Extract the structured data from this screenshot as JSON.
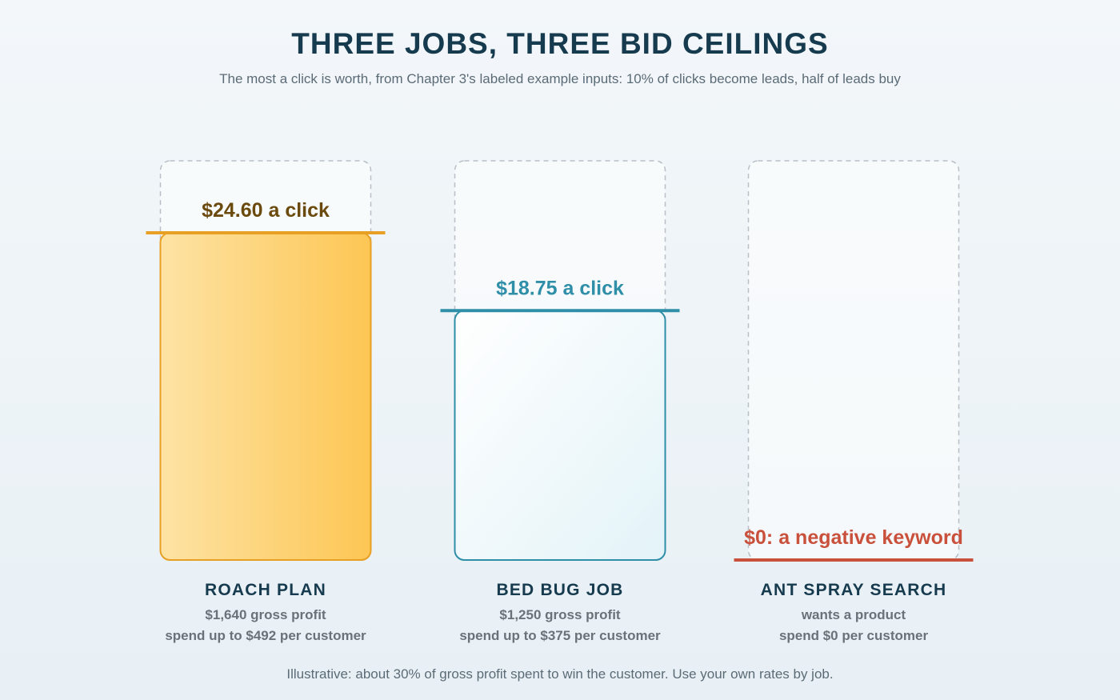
{
  "title": "THREE JOBS, THREE BID CEILINGS",
  "subtitle": "The most a click is worth, from Chapter 3's labeled example inputs: 10% of clicks become leads, half of leads buy",
  "footnote": "Illustrative: about 30% of gross profit spent to win the customer. Use your own rates by job.",
  "colors": {
    "roach": "#e8a024",
    "roach_text": "#6b4a0e",
    "bedbug": "#2f8ea8",
    "ant": "#c9513c",
    "frame": "#b8bfc6"
  },
  "chart_data": {
    "type": "bar",
    "categories": [
      "ROACH PLAN",
      "BED BUG JOB",
      "ANT SPRAY SEARCH"
    ],
    "values": [
      24.6,
      18.75,
      0
    ],
    "ylim": [
      0,
      30
    ],
    "ceiling_labels": [
      "$24.60 a click",
      "$18.75 a click",
      "$0: a negative keyword"
    ],
    "lines_1": [
      "$1,640 gross profit",
      "$1,250 gross profit",
      "wants a product"
    ],
    "lines_2": [
      "spend up to $492 per customer",
      "spend up to $375 per customer",
      "spend $0 per customer"
    ],
    "grid": false
  }
}
